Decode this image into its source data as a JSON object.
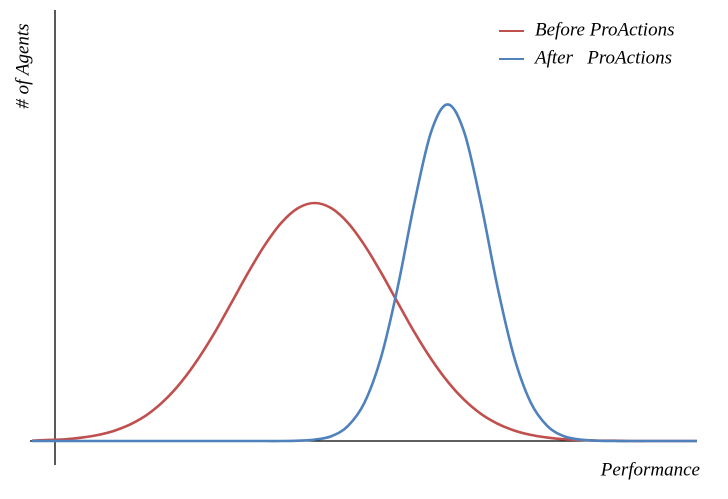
{
  "chart_data": {
    "type": "line",
    "x_label": "Performance",
    "y_label": "# of Agents",
    "xlim": [
      0,
      100
    ],
    "ylim": [
      0,
      100
    ],
    "x": [
      0,
      2.5,
      5,
      7.5,
      10,
      12.5,
      15,
      17.5,
      20,
      22.5,
      25,
      27.5,
      30,
      32.5,
      35,
      37.5,
      40,
      42.5,
      45,
      47.5,
      50,
      52.5,
      55,
      57.5,
      60,
      62.5,
      65,
      67.5,
      70,
      72.5,
      75,
      77.5,
      80,
      82.5,
      85,
      87.5,
      90,
      92.5,
      95,
      97.5,
      100
    ],
    "series": [
      {
        "name": "Before ProActions",
        "color": "#c0504d",
        "values": [
          0.1,
          0.3,
          0.5,
          1.0,
          1.8,
          3.1,
          5.1,
          8.0,
          12.1,
          17.5,
          24.2,
          32.0,
          40.7,
          49.5,
          57.6,
          64.2,
          68.5,
          70,
          68.5,
          64.2,
          57.6,
          49.5,
          40.7,
          32.0,
          24.2,
          17.5,
          12.1,
          8.0,
          5.1,
          3.1,
          1.8,
          1.0,
          0.5,
          0.3,
          0.1,
          0.1,
          0,
          0,
          0,
          0,
          0
        ]
      },
      {
        "name": "After   ProActions",
        "color": "#4f81bd",
        "values": [
          0,
          0,
          0,
          0,
          0,
          0,
          0,
          0,
          0,
          0,
          0,
          0,
          0,
          0,
          0,
          0,
          0.1,
          0.4,
          1.4,
          4.4,
          11.3,
          24.7,
          45.3,
          70.0,
          90.8,
          99,
          90.8,
          70.0,
          45.3,
          24.7,
          11.3,
          4.4,
          1.4,
          0.4,
          0.1,
          0,
          0,
          0,
          0,
          0,
          0
        ]
      }
    ]
  }
}
